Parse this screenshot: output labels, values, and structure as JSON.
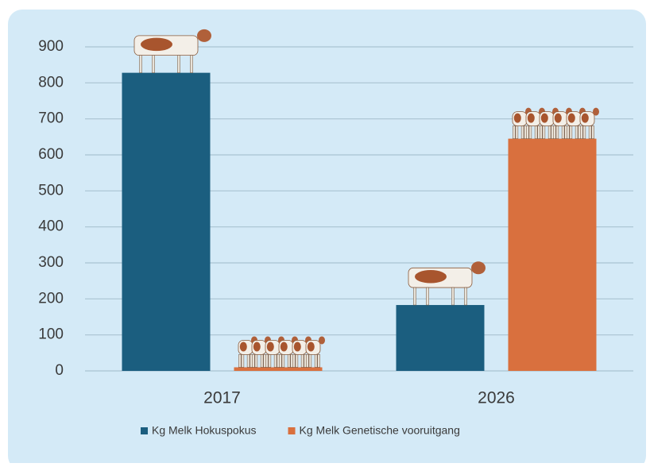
{
  "chart_data": {
    "type": "bar",
    "categories": [
      "2017",
      "2026"
    ],
    "series": [
      {
        "name": "Kg Melk Hokuspokus",
        "color": "#1b5e7f",
        "values": [
          828,
          183
        ]
      },
      {
        "name": "Kg Melk Genetische vooruitgang",
        "color": "#d9703e",
        "values": [
          10,
          645
        ]
      }
    ],
    "ylim": [
      0,
      900
    ],
    "yticks": [
      0,
      100,
      200,
      300,
      400,
      500,
      600,
      700,
      800,
      900
    ],
    "grid": true,
    "legend": "bottom"
  }
}
